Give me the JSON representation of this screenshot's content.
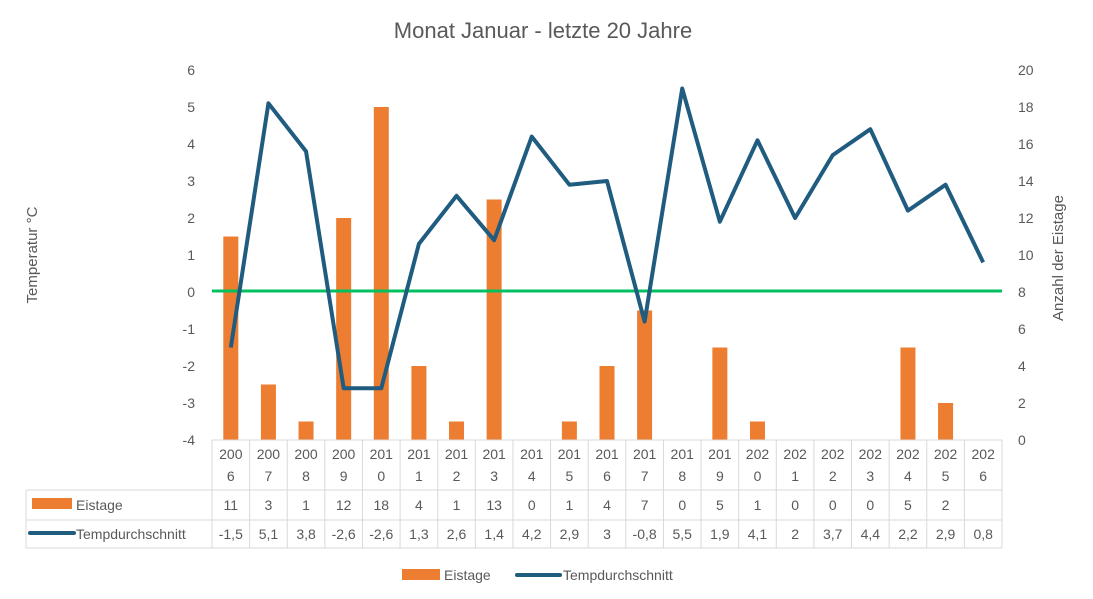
{
  "chart_data": {
    "type": "bar+line",
    "title": "Monat Januar  - letzte 20 Jahre",
    "ylabel": "Temperatur °C",
    "y2label": "Anzahl der Eistage",
    "ylim": [
      -4,
      6
    ],
    "y2lim": [
      0,
      20
    ],
    "yticks": [
      "6",
      "5",
      "4",
      "3",
      "2",
      "1",
      "0",
      "-1",
      "-2",
      "-3",
      "-4"
    ],
    "y2ticks": [
      "20",
      "18",
      "16",
      "14",
      "12",
      "10",
      "8",
      "6",
      "4",
      "2",
      "0"
    ],
    "categories": [
      "2006",
      "2007",
      "2008",
      "2009",
      "2010",
      "2011",
      "2012",
      "2013",
      "2014",
      "2015",
      "2016",
      "2017",
      "2018",
      "2019",
      "2020",
      "2021",
      "2022",
      "2023",
      "2024",
      "2025",
      "2026"
    ],
    "series": [
      {
        "name": "Eistage",
        "type": "bar",
        "axis": "right",
        "color": "#ED7D31",
        "values": [
          11,
          3,
          1,
          12,
          18,
          4,
          1,
          13,
          0,
          1,
          4,
          7,
          0,
          5,
          1,
          0,
          0,
          0,
          5,
          2,
          null
        ],
        "labels": [
          "11",
          "3",
          "1",
          "12",
          "18",
          "4",
          "1",
          "13",
          "0",
          "1",
          "4",
          "7",
          "0",
          "5",
          "1",
          "0",
          "0",
          "0",
          "5",
          "2",
          ""
        ]
      },
      {
        "name": "Tempdurchschnitt",
        "type": "line",
        "axis": "left",
        "color": "#1F5C7F",
        "values": [
          -1.5,
          5.1,
          3.8,
          -2.6,
          -2.6,
          1.3,
          2.6,
          1.4,
          4.2,
          2.9,
          3,
          -0.8,
          5.5,
          1.9,
          4.1,
          2,
          3.7,
          4.4,
          2.2,
          2.9,
          0.8
        ],
        "labels": [
          "-1,5",
          "5,1",
          "3,8",
          "-2,6",
          "-2,6",
          "1,3",
          "2,6",
          "1,4",
          "4,2",
          "2,9",
          "3",
          "-0,8",
          "5,5",
          "1,9",
          "4,1",
          "2",
          "3,7",
          "4,4",
          "2,2",
          "2,9",
          "0,8"
        ]
      }
    ],
    "reference_line": {
      "value": 0,
      "color": "#00C060"
    },
    "data_table": true,
    "legend": "bottom",
    "grid": false
  }
}
